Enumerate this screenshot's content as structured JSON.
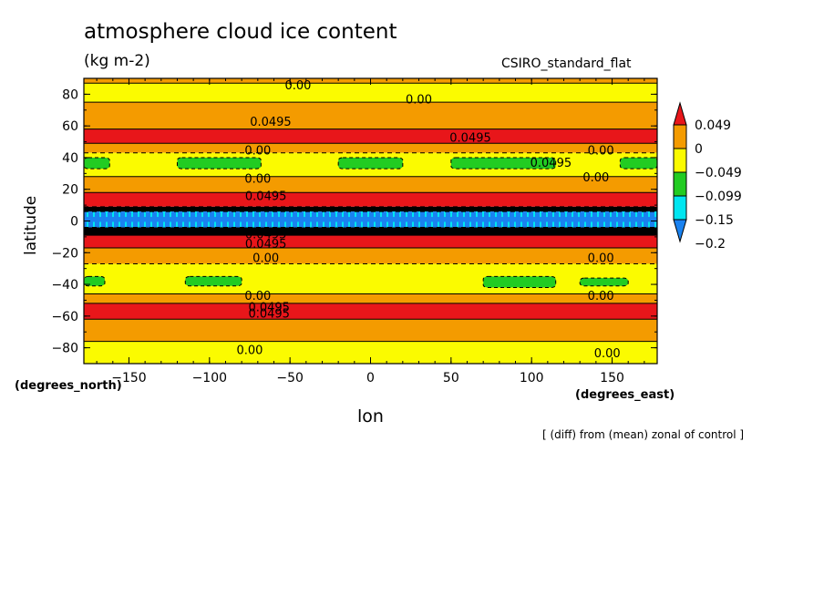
{
  "chart_data": {
    "type": "heatmap",
    "title": "atmosphere cloud ice content",
    "units": "(kg m-2)",
    "model": "CSIRO_standard_flat",
    "xlabel": "lon",
    "ylabel": "latitude",
    "x_unit_label": "(degrees_east)",
    "y_unit_label": "(degrees_north)",
    "footnote": "[ (diff) from (mean) zonal of control ]",
    "xlim": [
      -178,
      178
    ],
    "ylim": [
      -90,
      90
    ],
    "x_ticks": [
      -150,
      -100,
      -50,
      0,
      50,
      100,
      150
    ],
    "y_ticks": [
      80,
      60,
      40,
      20,
      0,
      -20,
      -40,
      -60,
      -80
    ],
    "x_tick_labels": [
      "−150",
      "−100",
      "−50",
      "0",
      "50",
      "100",
      "150"
    ],
    "y_tick_labels": [
      "80",
      "60",
      "40",
      "20",
      "0",
      "−20",
      "−40",
      "−60",
      "−80"
    ],
    "colorbar": {
      "levels": [
        "0.049",
        "0",
        "−0.049",
        "−0.099",
        "−0.15",
        "−0.2"
      ],
      "colors": [
        "#e8161a",
        "#f49b00",
        "#fbfb00",
        "#22cc22",
        "#00e6f0",
        "#1a82f0"
      ]
    },
    "bands": [
      {
        "lat_from": 90,
        "lat_to": 87,
        "level": "0.00",
        "color": "#f49b00"
      },
      {
        "lat_from": 87,
        "lat_to": 75,
        "level": "0.00",
        "color": "#fbfb00"
      },
      {
        "lat_from": 75,
        "lat_to": 58,
        "level": "0.0495",
        "color": "#f49b00"
      },
      {
        "lat_from": 58,
        "lat_to": 49,
        "level": "0.0495",
        "color": "#e8161a"
      },
      {
        "lat_from": 49,
        "lat_to": 43,
        "level": "0.00",
        "color": "#f49b00"
      },
      {
        "lat_from": 43,
        "lat_to": 28,
        "level": "-0.049",
        "color": "#fbfb00"
      },
      {
        "lat_from": 28,
        "lat_to": 18,
        "level": "0.00",
        "color": "#f49b00"
      },
      {
        "lat_from": 18,
        "lat_to": 9,
        "level": "0.0495",
        "color": "#e8161a"
      },
      {
        "lat_from": 9,
        "lat_to": 6,
        "level": "-0.15",
        "color": "#000000"
      },
      {
        "lat_from": 6,
        "lat_to": -4,
        "level": "-0.2",
        "color": "#1a82f0"
      },
      {
        "lat_from": -4,
        "lat_to": -9,
        "level": "-0.15",
        "color": "#000000"
      },
      {
        "lat_from": -9,
        "lat_to": -17,
        "level": "0.0495",
        "color": "#e8161a"
      },
      {
        "lat_from": -17,
        "lat_to": -27,
        "level": "0.00",
        "color": "#f49b00"
      },
      {
        "lat_from": -27,
        "lat_to": -46,
        "level": "-0.049",
        "color": "#fbfb00"
      },
      {
        "lat_from": -46,
        "lat_to": -52,
        "level": "0.00",
        "color": "#f49b00"
      },
      {
        "lat_from": -52,
        "lat_to": -62,
        "level": "0.0495",
        "color": "#e8161a"
      },
      {
        "lat_from": -62,
        "lat_to": -76,
        "level": "0.0495",
        "color": "#f49b00"
      },
      {
        "lat_from": -76,
        "lat_to": -90,
        "level": "0.00",
        "color": "#fbfb00"
      }
    ],
    "green_patches": [
      {
        "lon_from": -178,
        "lon_to": -162,
        "lat_from": 33,
        "lat_to": 40
      },
      {
        "lon_from": -120,
        "lon_to": -68,
        "lat_from": 33,
        "lat_to": 40
      },
      {
        "lon_from": -20,
        "lon_to": 20,
        "lat_from": 33,
        "lat_to": 40
      },
      {
        "lon_from": 50,
        "lon_to": 115,
        "lat_from": 33,
        "lat_to": 40
      },
      {
        "lon_from": 155,
        "lon_to": 178,
        "lat_from": 33,
        "lat_to": 40
      },
      {
        "lon_from": -178,
        "lon_to": -165,
        "lat_from": -41,
        "lat_to": -35
      },
      {
        "lon_from": -115,
        "lon_to": -80,
        "lat_from": -41,
        "lat_to": -35
      },
      {
        "lon_from": 70,
        "lon_to": 115,
        "lat_from": -42,
        "lat_to": -35
      },
      {
        "lon_from": 130,
        "lon_to": 160,
        "lat_from": -41,
        "lat_to": -36
      }
    ],
    "contour_labels": [
      {
        "text": "0.00",
        "lon": -45,
        "lat": 86
      },
      {
        "text": "0.00",
        "lon": 30,
        "lat": 77
      },
      {
        "text": "0.0495",
        "lon": -62,
        "lat": 63
      },
      {
        "text": "0.0495",
        "lon": 62,
        "lat": 53
      },
      {
        "text": "0.00",
        "lon": -70,
        "lat": 45
      },
      {
        "text": "0.00",
        "lon": 143,
        "lat": 45
      },
      {
        "text": "0.0495",
        "lon": 112,
        "lat": 37
      },
      {
        "text": "0.00",
        "lon": -70,
        "lat": 27
      },
      {
        "text": "0.00",
        "lon": 140,
        "lat": 28
      },
      {
        "text": "0.0495",
        "lon": -65,
        "lat": 16
      },
      {
        "text": "0.00",
        "lon": -65,
        "lat": -23
      },
      {
        "text": "0.00",
        "lon": 143,
        "lat": -23
      },
      {
        "text": "0.0495",
        "lon": -65,
        "lat": -8
      },
      {
        "text": "0.0495",
        "lon": -65,
        "lat": -14
      },
      {
        "text": "0.00",
        "lon": -70,
        "lat": -47
      },
      {
        "text": "0.00",
        "lon": 143,
        "lat": -47
      },
      {
        "text": "0.0495",
        "lon": -63,
        "lat": -54
      },
      {
        "text": "0.0495",
        "lon": -63,
        "lat": -58
      },
      {
        "text": "0.00",
        "lon": -75,
        "lat": -81
      },
      {
        "text": "0.00",
        "lon": 147,
        "lat": -83
      }
    ]
  }
}
